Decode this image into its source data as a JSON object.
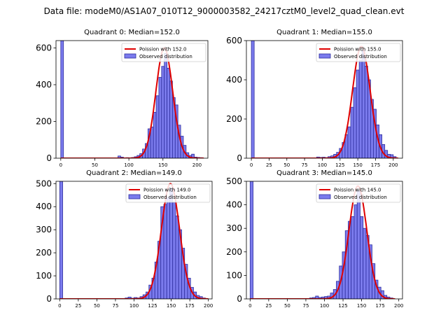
{
  "figure": {
    "suptitle": "Data file: modeM0/AS1A07_010T12_9000003582_24217cztM0_level2_quad_clean.evt"
  },
  "chart_data": [
    {
      "type": "bar",
      "title": "Quadrant 0: Median=152.0",
      "median": 152.0,
      "xlim": [
        -7,
        216
      ],
      "ylim": [
        0,
        640
      ],
      "xticks": [
        0,
        50,
        100,
        150,
        200
      ],
      "yticks": [
        0,
        200,
        400,
        600
      ],
      "bin_width": 4,
      "bins": [
        [
          0,
          640
        ],
        [
          84,
          12
        ],
        [
          88,
          6
        ],
        [
          92,
          2
        ],
        [
          96,
          3
        ],
        [
          100,
          2
        ],
        [
          104,
          4
        ],
        [
          108,
          8
        ],
        [
          112,
          15
        ],
        [
          116,
          25
        ],
        [
          120,
          50
        ],
        [
          124,
          80
        ],
        [
          128,
          160
        ],
        [
          132,
          170
        ],
        [
          136,
          250
        ],
        [
          140,
          340
        ],
        [
          144,
          440
        ],
        [
          148,
          500
        ],
        [
          152,
          570
        ],
        [
          156,
          490
        ],
        [
          160,
          420
        ],
        [
          164,
          330
        ],
        [
          168,
          290
        ],
        [
          172,
          180
        ],
        [
          176,
          120
        ],
        [
          180,
          70
        ],
        [
          184,
          30
        ],
        [
          188,
          15
        ],
        [
          192,
          22
        ],
        [
          196,
          6
        ],
        [
          200,
          4
        ],
        [
          204,
          3
        ]
      ],
      "fit_label": "Poission with 152.0",
      "fit_mean": 152.0,
      "fit_peak": 600,
      "fit_x_range": [
        0,
        210
      ],
      "legend": [
        "Poission with 152.0",
        "Observed distribution"
      ]
    },
    {
      "type": "bar",
      "title": "Quadrant 1: Median=155.0",
      "median": 155.0,
      "xlim": [
        -7,
        213
      ],
      "ylim": [
        0,
        600
      ],
      "xticks": [
        0,
        25,
        50,
        75,
        100,
        125,
        150,
        175,
        200
      ],
      "yticks": [
        0,
        200,
        400,
        600
      ],
      "bin_width": 4,
      "bins": [
        [
          0,
          600
        ],
        [
          92,
          6
        ],
        [
          96,
          4
        ],
        [
          100,
          5
        ],
        [
          104,
          3
        ],
        [
          108,
          8
        ],
        [
          112,
          12
        ],
        [
          116,
          20
        ],
        [
          120,
          30
        ],
        [
          124,
          50
        ],
        [
          128,
          80
        ],
        [
          132,
          120
        ],
        [
          136,
          160
        ],
        [
          140,
          260
        ],
        [
          144,
          360
        ],
        [
          148,
          450
        ],
        [
          152,
          500
        ],
        [
          156,
          550
        ],
        [
          160,
          470
        ],
        [
          164,
          400
        ],
        [
          168,
          300
        ],
        [
          172,
          250
        ],
        [
          176,
          170
        ],
        [
          180,
          120
        ],
        [
          184,
          70
        ],
        [
          188,
          40
        ],
        [
          192,
          20
        ],
        [
          196,
          18
        ],
        [
          200,
          8
        ]
      ],
      "fit_label": "Poission with 155.0",
      "fit_mean": 155.0,
      "fit_peak": 570,
      "fit_x_range": [
        0,
        207
      ],
      "legend": [
        "Poission with 155.0",
        "Observed distribution"
      ]
    },
    {
      "type": "bar",
      "title": "Quadrant 2: Median=149.0",
      "median": 149.0,
      "xlim": [
        -5,
        205
      ],
      "ylim": [
        0,
        510
      ],
      "xticks": [
        0,
        25,
        50,
        75,
        100,
        125,
        150,
        175,
        200
      ],
      "yticks": [
        0,
        100,
        200,
        300,
        400,
        500
      ],
      "bin_width": 4,
      "bins": [
        [
          0,
          510
        ],
        [
          88,
          4
        ],
        [
          92,
          8
        ],
        [
          96,
          3
        ],
        [
          100,
          6
        ],
        [
          104,
          4
        ],
        [
          108,
          10
        ],
        [
          112,
          18
        ],
        [
          116,
          30
        ],
        [
          120,
          60
        ],
        [
          124,
          90
        ],
        [
          128,
          160
        ],
        [
          132,
          250
        ],
        [
          136,
          400
        ],
        [
          140,
          410
        ],
        [
          144,
          440
        ],
        [
          148,
          480
        ],
        [
          152,
          420
        ],
        [
          156,
          360
        ],
        [
          160,
          300
        ],
        [
          164,
          220
        ],
        [
          168,
          150
        ],
        [
          172,
          90
        ],
        [
          176,
          50
        ],
        [
          180,
          30
        ],
        [
          184,
          15
        ],
        [
          188,
          10
        ],
        [
          192,
          4
        ]
      ],
      "fit_label": "Poission with 149.0",
      "fit_mean": 149.0,
      "fit_peak": 500,
      "fit_x_range": [
        0,
        200
      ],
      "legend": [
        "Poission with 149.0",
        "Observed distribution"
      ]
    },
    {
      "type": "bar",
      "title": "Quadrant 3: Median=145.0",
      "median": 145.0,
      "xlim": [
        -5,
        205
      ],
      "ylim": [
        0,
        500
      ],
      "xticks": [
        0,
        25,
        50,
        75,
        100,
        125,
        150,
        175,
        200
      ],
      "yticks": [
        0,
        100,
        200,
        300,
        400,
        500
      ],
      "bin_width": 4,
      "bins": [
        [
          0,
          500
        ],
        [
          80,
          4
        ],
        [
          84,
          6
        ],
        [
          88,
          12
        ],
        [
          92,
          6
        ],
        [
          96,
          8
        ],
        [
          100,
          10
        ],
        [
          104,
          12
        ],
        [
          108,
          25
        ],
        [
          112,
          40
        ],
        [
          116,
          75
        ],
        [
          120,
          140
        ],
        [
          124,
          200
        ],
        [
          128,
          290
        ],
        [
          132,
          330
        ],
        [
          136,
          350
        ],
        [
          140,
          400
        ],
        [
          144,
          460
        ],
        [
          148,
          350
        ],
        [
          152,
          300
        ],
        [
          156,
          270
        ],
        [
          160,
          230
        ],
        [
          164,
          150
        ],
        [
          168,
          80
        ],
        [
          172,
          50
        ],
        [
          176,
          35
        ],
        [
          180,
          15
        ],
        [
          184,
          8
        ],
        [
          188,
          4
        ]
      ],
      "fit_label": "Poission with 145.0",
      "fit_mean": 145.0,
      "fit_peak": 480,
      "fit_x_range": [
        0,
        195
      ],
      "legend": [
        "Poission with 145.0",
        "Observed distribution"
      ]
    }
  ],
  "colors": {
    "bar_fill": "#7b7bed",
    "bar_edge": "#2e2e9e",
    "fit_line": "#e00000",
    "axis": "#000000"
  }
}
